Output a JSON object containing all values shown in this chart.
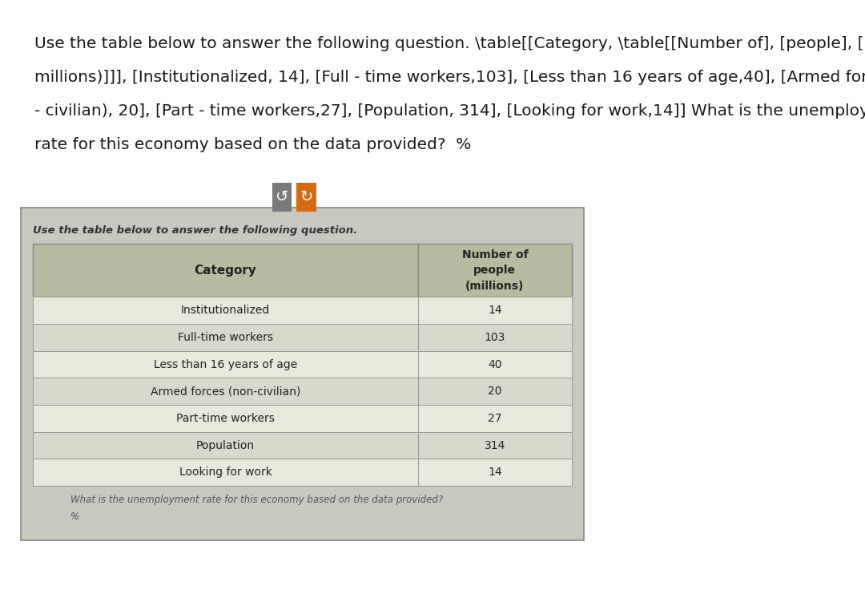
{
  "top_text_lines": [
    "Use the table below to answer the following question. \\table[[Category, \\table[[Number of], [people], [(",
    "millions)]]], [Institutionalized, 14], [Full - time workers,103], [Less than 16 years of age,40], [Armed forces (non",
    "- civilian), 20], [Part - time workers,27], [Population, 314], [Looking for work,14]] What is the unemployment",
    "rate for this economy based on the data provided?  %"
  ],
  "table_subtitle": "Use the table below to answer the following question.",
  "col_headers": [
    "Category",
    "Number of\npeople\n(millions)"
  ],
  "rows": [
    [
      "Institutionalized",
      "14"
    ],
    [
      "Full-time workers",
      "103"
    ],
    [
      "Less than 16 years of age",
      "40"
    ],
    [
      "Armed forces (non-civilian)",
      "20"
    ],
    [
      "Part-time workers",
      "27"
    ],
    [
      "Population",
      "314"
    ],
    [
      "Looking for work",
      "14"
    ]
  ],
  "bottom_text": "What is the unemployment rate for this economy based on the data provided?",
  "bottom_text2": "%",
  "page_bg": "#ffffff",
  "card_outer_bg": "#c8c8c0",
  "card_inner_bg": "#d8d8cc",
  "header_bg": "#b8bba0",
  "row_bg_light": "#e8e8dc",
  "row_bg_dark": "#d8d8cc",
  "btn1_bg": "#7a7a7a",
  "btn2_bg": "#d46b10",
  "btn_icon_color": "#ffffff",
  "top_text_color": "#1a1a1a",
  "subtitle_color": "#333333",
  "table_text_color": "#222222",
  "bottom_text_color": "#555555",
  "border_color": "#888880",
  "divider_color": "#999990"
}
